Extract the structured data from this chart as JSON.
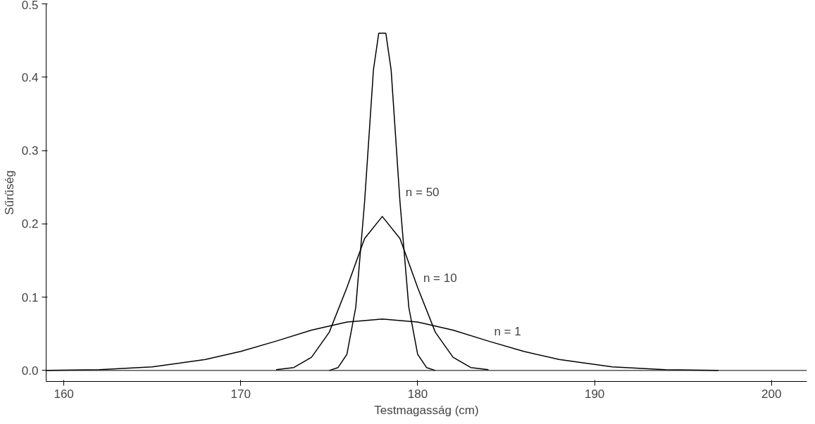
{
  "chart_data": {
    "type": "line",
    "xlabel": "Testmagasság (cm)",
    "ylabel": "Sűrűség",
    "xlim": [
      159,
      202
    ],
    "ylim": [
      -0.015,
      0.5
    ],
    "xticks": [
      160,
      170,
      180,
      190,
      200
    ],
    "yticks": [
      {
        "value": 0,
        "label": "0.0"
      },
      0.1,
      0.2,
      0.3,
      0.4,
      0.5
    ],
    "grid": false,
    "marker": "none",
    "line_style": "solid",
    "ref_lines": [
      {
        "axis": "y",
        "value": 0,
        "label": null,
        "color": "#000000"
      }
    ],
    "series": [
      {
        "name": "n = 1",
        "color": "#000000",
        "x": [
          159,
          162,
          165,
          168,
          170,
          172,
          174,
          176,
          178,
          180,
          182,
          184,
          186,
          188,
          191,
          194,
          197
        ],
        "values": [
          0,
          0.001,
          0.005,
          0.015,
          0.026,
          0.04,
          0.055,
          0.066,
          0.07,
          0.066,
          0.055,
          0.04,
          0.026,
          0.015,
          0.005,
          0.001,
          0
        ]
      },
      {
        "name": "n = 10",
        "color": "#000000",
        "x": [
          172,
          173,
          174,
          175,
          176,
          177,
          178,
          179,
          180,
          181,
          182,
          183,
          184
        ],
        "values": [
          0.001,
          0.004,
          0.018,
          0.052,
          0.113,
          0.18,
          0.21,
          0.18,
          0.113,
          0.052,
          0.018,
          0.004,
          0.001
        ]
      },
      {
        "name": "n = 50",
        "color": "#000000",
        "x": [
          175,
          175.5,
          176,
          176.5,
          177,
          177.5,
          177.8,
          178.2,
          178.5,
          179,
          179.5,
          180,
          180.5,
          181
        ],
        "values": [
          0,
          0.004,
          0.022,
          0.086,
          0.23,
          0.41,
          0.46,
          0.46,
          0.41,
          0.23,
          0.086,
          0.022,
          0.004,
          0
        ]
      }
    ]
  }
}
